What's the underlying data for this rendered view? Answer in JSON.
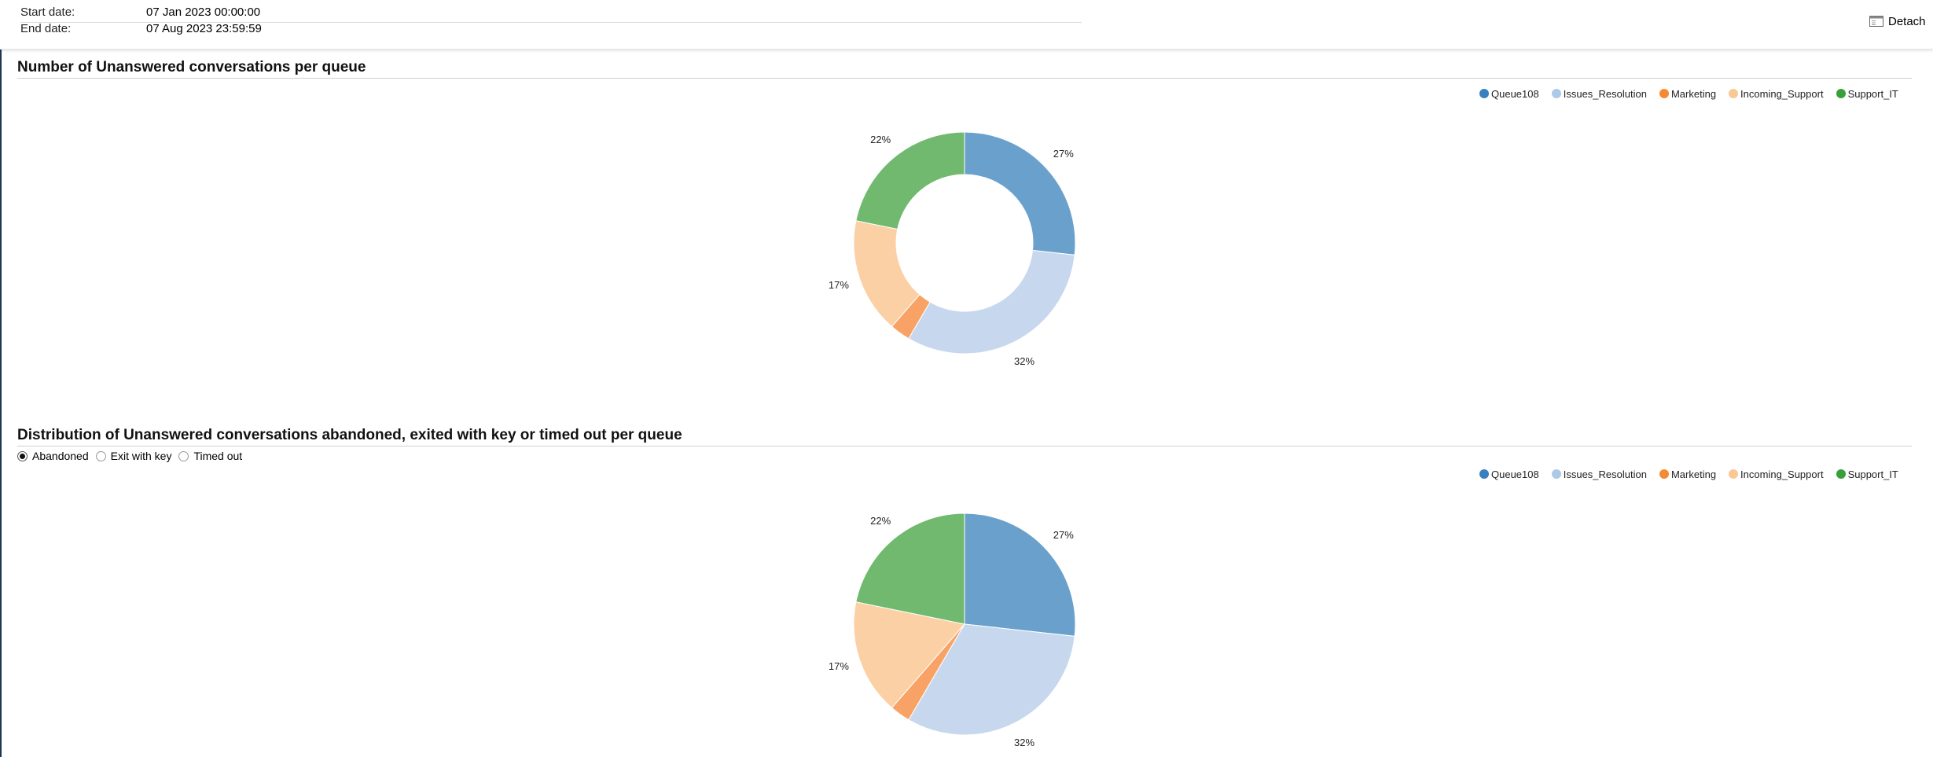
{
  "header": {
    "start_label": "Start date:",
    "start_value": "07 Jan 2023 00:00:00",
    "end_label": "End date:",
    "end_value": "07 Aug 2023 23:59:59",
    "detach_label": "Detach",
    "detach_icon": "window-icon"
  },
  "colors": {
    "Queue108": "#6aa1cc",
    "Issues_Resolution": "#c7d8ee",
    "Marketing": "#f9a266",
    "Incoming_Support": "#fbd0a5",
    "Support_IT": "#70b96e"
  },
  "legend": [
    {
      "name": "Queue108",
      "color": "#3a7fc0"
    },
    {
      "name": "Issues_Resolution",
      "color": "#aec8e8"
    },
    {
      "name": "Marketing",
      "color": "#f58a34"
    },
    {
      "name": "Incoming_Support",
      "color": "#f9c894"
    },
    {
      "name": "Support_IT",
      "color": "#37a03a"
    }
  ],
  "section1": {
    "title": "Number of Unanswered conversations per queue"
  },
  "section2": {
    "title": "Distribution of Unanswered conversations abandoned, exited with key or timed out per queue",
    "options": [
      "Abandoned",
      "Exit with key",
      "Timed out"
    ],
    "selected": "Abandoned"
  },
  "chart_data": [
    {
      "type": "pie",
      "variant": "donut",
      "title": "Number of Unanswered conversations per queue",
      "categories": [
        "Queue108",
        "Issues_Resolution",
        "Marketing",
        "Incoming_Support",
        "Support_IT"
      ],
      "values": [
        27,
        32,
        3,
        17,
        22
      ],
      "labels": [
        "27%",
        "32%",
        "",
        "17%",
        "22%"
      ],
      "legend_position": "top-right"
    },
    {
      "type": "pie",
      "title": "Distribution of Unanswered conversations abandoned, exited with key or timed out per queue",
      "categories": [
        "Queue108",
        "Issues_Resolution",
        "Marketing",
        "Incoming_Support",
        "Support_IT"
      ],
      "values": [
        27,
        32,
        3,
        17,
        22
      ],
      "labels": [
        "27%",
        "32%",
        "",
        "17%",
        "22%"
      ],
      "legend_position": "top-right"
    }
  ]
}
